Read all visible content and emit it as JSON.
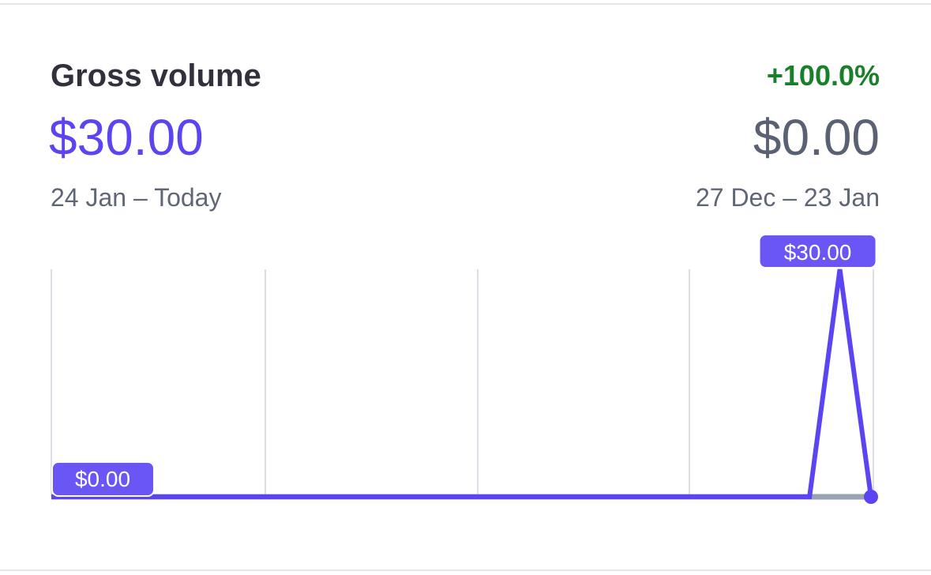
{
  "card": {
    "title": "Gross volume",
    "change": "+100.0%",
    "current_value": "$30.00",
    "previous_value": "$0.00",
    "current_range": "24 Jan – Today",
    "previous_range": "27 Dec – 23 Jan"
  },
  "colors": {
    "accent": "#5b45f2",
    "positive": "#1a7f2a",
    "previous_line": "#9aa3b1",
    "grid": "#dcdee5"
  },
  "chart_data": {
    "type": "line",
    "ylim": [
      0,
      30
    ],
    "grid": "vertical",
    "series": [
      {
        "points": [
          {
            "x": 0,
            "y": 0
          },
          {
            "x": 0.925,
            "y": 0
          },
          {
            "x": 0.962,
            "y": 30
          },
          {
            "x": 1,
            "y": 0
          }
        ]
      },
      {
        "points": [
          {
            "x": 0,
            "y": 0
          },
          {
            "x": 1,
            "y": 0
          }
        ]
      }
    ],
    "labels": {
      "max": "$30.00",
      "min": "$0.00"
    }
  }
}
